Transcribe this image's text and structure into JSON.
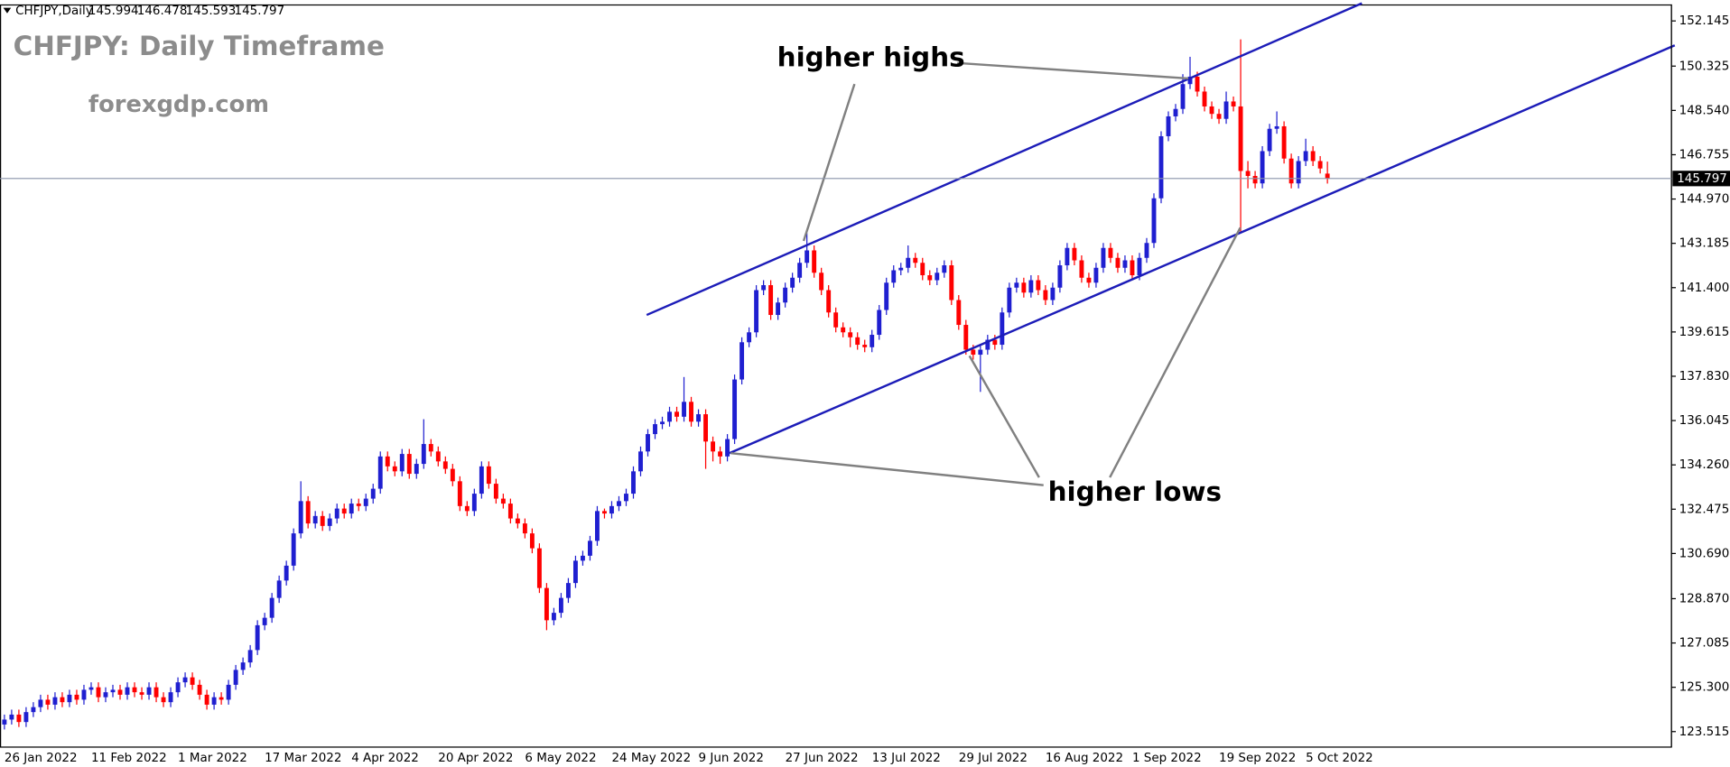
{
  "chart_data": {
    "type": "candlestick",
    "symbol": "CHFJPY,Daily",
    "title": "CHFJPY: Daily Timeframe",
    "watermark": "forexgdp.com",
    "annotations": [
      "higher highs",
      "higher lows"
    ],
    "up_color": "#1f1fd0",
    "down_color": "#ff0000",
    "price_line_color": "#8a94aa",
    "categories": [
      "26 Jan 2022",
      null,
      null,
      null,
      null,
      null,
      null,
      null,
      null,
      null,
      null,
      null,
      "11 Feb 2022",
      null,
      null,
      null,
      null,
      null,
      null,
      null,
      null,
      null,
      null,
      null,
      "1 Mar 2022",
      null,
      null,
      null,
      null,
      null,
      null,
      null,
      null,
      null,
      null,
      null,
      "17 Mar 2022",
      null,
      null,
      null,
      null,
      null,
      null,
      null,
      null,
      null,
      null,
      null,
      "4 Apr 2022",
      null,
      null,
      null,
      null,
      null,
      null,
      null,
      null,
      null,
      null,
      null,
      "20 Apr 2022",
      null,
      null,
      null,
      null,
      null,
      null,
      null,
      null,
      null,
      null,
      null,
      "6 May 2022",
      null,
      null,
      null,
      null,
      null,
      null,
      null,
      null,
      null,
      null,
      null,
      "24 May 2022",
      null,
      null,
      null,
      null,
      null,
      null,
      null,
      null,
      null,
      null,
      null,
      "9 Jun 2022",
      null,
      null,
      null,
      null,
      null,
      null,
      null,
      null,
      null,
      null,
      null,
      "27 Jun 2022",
      null,
      null,
      null,
      null,
      null,
      null,
      null,
      null,
      null,
      null,
      null,
      "13 Jul 2022",
      null,
      null,
      null,
      null,
      null,
      null,
      null,
      null,
      null,
      null,
      null,
      "29 Jul 2022",
      null,
      null,
      null,
      null,
      null,
      null,
      null,
      null,
      null,
      null,
      null,
      "16 Aug 2022",
      null,
      null,
      null,
      null,
      null,
      null,
      null,
      null,
      null,
      null,
      null,
      "1 Sep 2022",
      null,
      null,
      null,
      null,
      null,
      null,
      null,
      null,
      null,
      null,
      null,
      "19 Sep 2022",
      null,
      null,
      null,
      null,
      null,
      null,
      null,
      null,
      null,
      null,
      null,
      "5 Oct 2022",
      null,
      null,
      null
    ],
    "open": [
      123.8,
      124.0,
      124.2,
      123.9,
      124.3,
      124.5,
      124.8,
      124.6,
      124.9,
      124.7,
      125.0,
      124.8,
      125.2,
      125.3,
      124.9,
      125.1,
      125.2,
      125.0,
      125.3,
      125.1,
      125.0,
      125.3,
      124.9,
      124.7,
      125.1,
      125.5,
      125.7,
      125.4,
      125.0,
      124.6,
      124.9,
      124.8,
      125.4,
      126.0,
      126.3,
      126.8,
      127.8,
      128.1,
      128.9,
      129.6,
      130.2,
      131.5,
      132.8,
      131.9,
      132.2,
      131.8,
      132.1,
      132.5,
      132.3,
      132.7,
      132.6,
      132.9,
      133.3,
      134.6,
      134.2,
      134.0,
      134.7,
      133.9,
      134.3,
      135.1,
      134.8,
      134.4,
      134.1,
      133.6,
      132.6,
      132.4,
      133.1,
      134.2,
      133.5,
      132.9,
      132.7,
      132.1,
      131.9,
      131.5,
      130.9,
      129.3,
      128.0,
      128.3,
      128.9,
      129.5,
      130.4,
      130.6,
      131.2,
      132.4,
      132.3,
      132.6,
      132.8,
      133.1,
      134.0,
      134.8,
      135.5,
      135.9,
      136.0,
      136.4,
      136.2,
      136.8,
      136.0,
      136.3,
      135.2,
      134.8,
      134.6,
      135.3,
      137.7,
      139.2,
      139.6,
      141.3,
      141.5,
      140.3,
      140.8,
      141.4,
      141.8,
      142.4,
      142.9,
      142.0,
      141.3,
      140.4,
      139.8,
      139.6,
      139.4,
      139.1,
      139.0,
      139.5,
      140.5,
      141.6,
      142.1,
      142.2,
      142.6,
      142.4,
      141.9,
      141.7,
      142.0,
      142.3,
      140.9,
      139.9,
      138.9,
      138.7,
      138.9,
      139.3,
      139.1,
      140.4,
      141.4,
      141.6,
      141.2,
      141.7,
      141.3,
      140.9,
      141.4,
      142.3,
      143.0,
      142.5,
      141.8,
      141.6,
      142.2,
      143.0,
      142.6,
      142.2,
      142.5,
      141.9,
      142.6,
      143.2,
      145.0,
      147.5,
      148.3,
      148.6,
      149.6,
      149.9,
      149.3,
      148.7,
      148.4,
      148.2,
      148.9,
      148.7,
      146.1,
      145.9,
      145.6,
      146.9,
      147.8,
      147.9,
      146.6,
      145.6,
      146.5,
      146.9,
      146.5,
      145.994
    ],
    "high": [
      124.2,
      124.4,
      124.4,
      124.5,
      124.7,
      125.0,
      125.0,
      125.1,
      125.1,
      125.2,
      125.2,
      125.4,
      125.5,
      125.5,
      125.3,
      125.4,
      125.4,
      125.5,
      125.5,
      125.3,
      125.5,
      125.5,
      125.1,
      125.3,
      125.7,
      125.9,
      125.9,
      125.6,
      125.2,
      125.1,
      125.1,
      125.6,
      126.2,
      126.5,
      127.0,
      128.0,
      128.3,
      129.1,
      129.8,
      130.4,
      131.7,
      133.6,
      133.0,
      132.4,
      132.4,
      132.3,
      132.7,
      132.7,
      132.9,
      132.9,
      133.1,
      133.5,
      134.8,
      134.8,
      134.4,
      134.9,
      134.9,
      134.5,
      136.1,
      135.3,
      135.0,
      134.6,
      134.3,
      133.8,
      132.8,
      133.3,
      134.4,
      134.4,
      133.7,
      133.1,
      132.9,
      132.3,
      132.1,
      131.7,
      131.1,
      129.5,
      128.5,
      129.1,
      129.7,
      130.6,
      130.8,
      131.4,
      132.6,
      132.5,
      132.8,
      133.0,
      133.3,
      134.2,
      135.0,
      135.7,
      136.1,
      136.2,
      136.6,
      136.6,
      137.8,
      137.0,
      136.5,
      136.5,
      135.4,
      135.0,
      135.5,
      137.9,
      139.4,
      139.8,
      141.5,
      141.7,
      141.7,
      141.0,
      141.6,
      142.0,
      142.6,
      143.6,
      143.1,
      142.2,
      141.5,
      140.6,
      140.0,
      139.8,
      139.6,
      139.3,
      139.7,
      140.7,
      141.8,
      142.3,
      142.4,
      143.1,
      142.8,
      142.6,
      142.1,
      142.2,
      142.5,
      142.5,
      141.1,
      140.1,
      139.1,
      139.1,
      139.5,
      139.5,
      140.6,
      141.6,
      141.8,
      141.8,
      141.9,
      141.9,
      141.5,
      141.6,
      142.5,
      143.2,
      143.2,
      142.7,
      142.0,
      142.4,
      143.2,
      143.2,
      142.8,
      142.7,
      142.7,
      142.8,
      143.4,
      145.2,
      147.7,
      148.5,
      148.8,
      150.0,
      150.7,
      150.1,
      149.5,
      148.9,
      148.6,
      149.3,
      149.1,
      151.4,
      146.5,
      146.1,
      147.1,
      148.0,
      148.5,
      148.1,
      146.8,
      146.7,
      147.4,
      147.1,
      146.7,
      146.478
    ],
    "low": [
      123.6,
      123.8,
      123.7,
      123.7,
      124.1,
      124.3,
      124.4,
      124.4,
      124.5,
      124.5,
      124.6,
      124.6,
      125.0,
      124.7,
      124.7,
      124.9,
      124.8,
      124.8,
      124.9,
      124.8,
      124.8,
      124.7,
      124.5,
      124.5,
      124.9,
      125.3,
      125.2,
      124.8,
      124.4,
      124.4,
      124.6,
      124.6,
      125.2,
      125.8,
      126.1,
      126.6,
      127.6,
      127.9,
      128.7,
      129.4,
      130.0,
      131.3,
      131.7,
      131.7,
      131.6,
      131.6,
      131.9,
      132.1,
      132.1,
      132.4,
      132.4,
      132.7,
      133.1,
      134.0,
      133.8,
      133.8,
      133.7,
      133.7,
      134.1,
      134.6,
      134.2,
      133.9,
      133.4,
      132.4,
      132.2,
      132.2,
      132.9,
      133.3,
      132.7,
      132.5,
      131.9,
      131.7,
      131.3,
      130.7,
      129.1,
      127.6,
      127.8,
      128.1,
      128.7,
      129.3,
      130.2,
      130.4,
      131.0,
      132.1,
      132.1,
      132.4,
      132.6,
      132.9,
      133.8,
      134.6,
      135.3,
      135.7,
      135.8,
      136.0,
      136.0,
      135.8,
      135.8,
      134.1,
      134.4,
      134.3,
      134.4,
      135.1,
      137.5,
      139.0,
      139.4,
      141.1,
      140.1,
      140.1,
      140.6,
      141.2,
      141.6,
      142.2,
      141.8,
      141.1,
      140.2,
      139.6,
      139.4,
      139.0,
      138.9,
      138.8,
      138.8,
      139.3,
      140.3,
      141.4,
      141.9,
      142.0,
      142.2,
      141.7,
      141.5,
      141.5,
      141.8,
      140.7,
      139.7,
      138.7,
      138.5,
      137.2,
      138.7,
      138.9,
      138.9,
      140.2,
      141.2,
      141.0,
      141.0,
      141.1,
      140.7,
      140.7,
      141.2,
      142.1,
      142.3,
      141.6,
      141.4,
      141.4,
      142.0,
      142.4,
      142.0,
      142.0,
      141.7,
      141.7,
      142.4,
      143.0,
      144.8,
      147.3,
      148.1,
      148.4,
      149.4,
      149.1,
      148.5,
      148.2,
      148.0,
      148.0,
      148.5,
      143.6,
      145.4,
      145.4,
      145.4,
      146.7,
      147.6,
      146.4,
      145.4,
      145.4,
      146.3,
      146.3,
      146.0,
      145.593
    ],
    "close": [
      124.0,
      124.2,
      123.9,
      124.3,
      124.5,
      124.8,
      124.6,
      124.9,
      124.7,
      125.0,
      124.8,
      125.2,
      125.3,
      124.9,
      125.1,
      125.2,
      125.0,
      125.3,
      125.1,
      125.0,
      125.3,
      124.9,
      124.7,
      125.1,
      125.5,
      125.7,
      125.4,
      125.0,
      124.6,
      124.9,
      124.8,
      125.4,
      126.0,
      126.3,
      126.8,
      127.8,
      128.1,
      128.9,
      129.6,
      130.2,
      131.5,
      132.8,
      131.9,
      132.2,
      131.8,
      132.1,
      132.5,
      132.3,
      132.7,
      132.6,
      132.9,
      133.3,
      134.6,
      134.2,
      134.0,
      134.7,
      133.9,
      134.3,
      135.1,
      134.8,
      134.4,
      134.1,
      133.6,
      132.6,
      132.4,
      133.1,
      134.2,
      133.5,
      132.9,
      132.7,
      132.1,
      131.9,
      131.5,
      130.9,
      129.3,
      128.0,
      128.3,
      128.9,
      129.5,
      130.4,
      130.6,
      131.2,
      132.4,
      132.3,
      132.6,
      132.8,
      133.1,
      134.0,
      134.8,
      135.5,
      135.9,
      136.0,
      136.4,
      136.2,
      136.8,
      136.0,
      136.3,
      135.2,
      134.8,
      134.6,
      135.3,
      137.7,
      139.2,
      139.6,
      141.3,
      141.5,
      140.3,
      140.8,
      141.4,
      141.8,
      142.4,
      142.9,
      142.0,
      141.3,
      140.4,
      139.8,
      139.6,
      139.4,
      139.1,
      139.0,
      139.5,
      140.5,
      141.6,
      142.1,
      142.2,
      142.6,
      142.4,
      141.9,
      141.7,
      142.0,
      142.3,
      140.9,
      139.9,
      138.9,
      138.7,
      138.9,
      139.3,
      139.1,
      140.4,
      141.4,
      141.6,
      141.2,
      141.7,
      141.3,
      140.9,
      141.4,
      142.3,
      143.0,
      142.5,
      141.8,
      141.6,
      142.2,
      143.0,
      142.6,
      142.2,
      142.5,
      141.9,
      142.6,
      143.2,
      145.0,
      147.5,
      148.3,
      148.6,
      149.6,
      149.9,
      149.3,
      148.7,
      148.4,
      148.2,
      148.9,
      148.7,
      146.1,
      145.9,
      145.6,
      146.9,
      147.8,
      147.9,
      146.6,
      145.6,
      146.5,
      146.9,
      146.5,
      146.2,
      145.797
    ],
    "ylim": [
      122.89,
      152.81
    ],
    "yticks": [
      152.145,
      150.325,
      {
        "value": 148.54,
        "label": "148.540"
      },
      146.755,
      {
        "value": 144.97,
        "label": "144.970"
      },
      143.185,
      {
        "value": 141.4,
        "label": "141.400"
      },
      139.615,
      {
        "value": 137.83,
        "label": "137.830"
      },
      136.045,
      {
        "value": 134.26,
        "label": "134.260"
      },
      132.475,
      {
        "value": 130.69,
        "label": "130.690"
      },
      {
        "value": 128.87,
        "label": "128.870"
      },
      127.085,
      {
        "value": 125.3,
        "label": "125.300"
      },
      123.515
    ]
  }
}
